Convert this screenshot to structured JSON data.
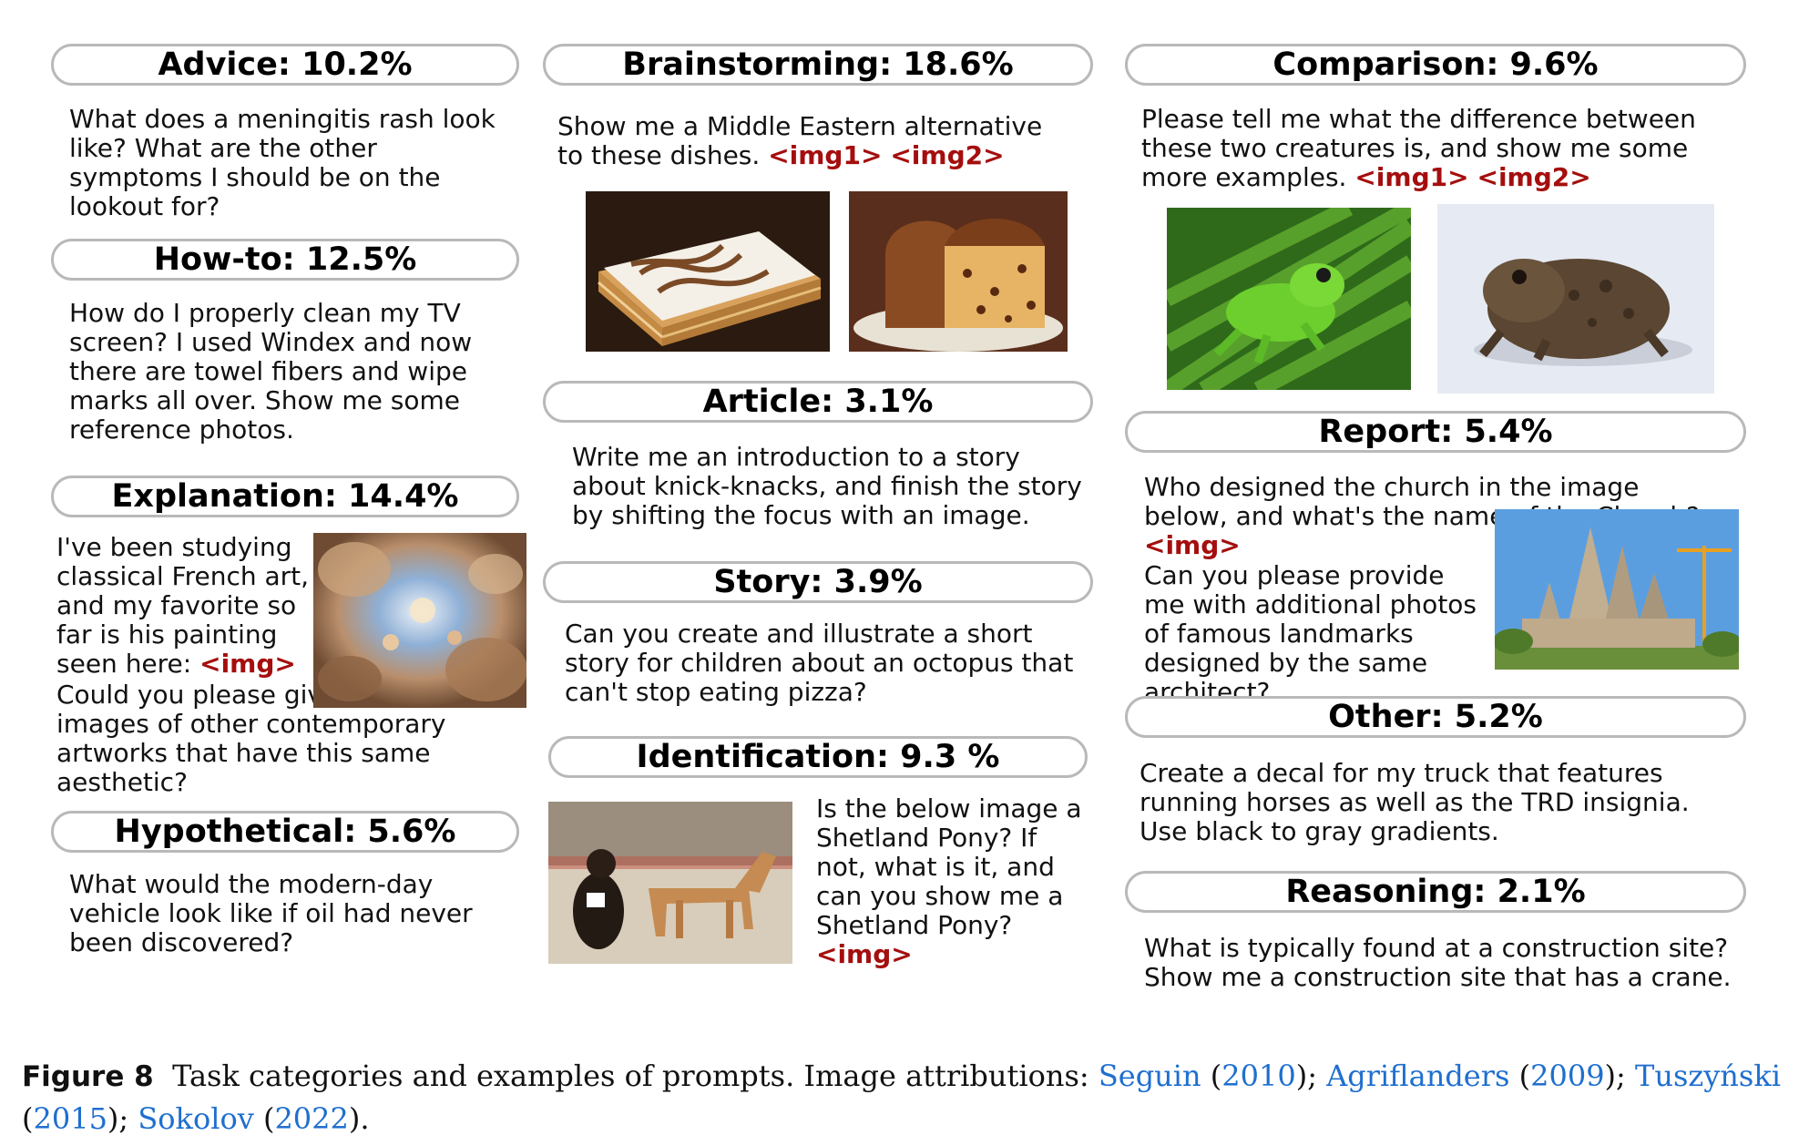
{
  "categories": {
    "advice": {
      "title": "Advice: 10.2%",
      "prompt": "What does a meningitis rash look like? What are the other symptoms I should be on the lookout for?"
    },
    "howto": {
      "title": "How-to: 12.5%",
      "prompt": "How do I properly clean my TV screen? I used Windex and now there are towel fibers and wipe marks all over. Show me some reference photos."
    },
    "explanation": {
      "title": "Explanation: 14.4%",
      "prompt_before": "I've been studying classical French art, and my favorite so far is his painting seen here:",
      "token": "<img>",
      "prompt_after": "Could you please give me a few images of other contemporary artworks that have this same aesthetic?"
    },
    "hypothetical": {
      "title": "Hypothetical: 5.6%",
      "prompt": "What would the modern-day vehicle look like if oil had never been discovered?"
    },
    "brainstorming": {
      "title": "Brainstorming: 18.6%",
      "prompt": "Show me a Middle Eastern alternative to these dishes.",
      "token1": "<img1>",
      "token2": "<img2>"
    },
    "article": {
      "title": "Article: 3.1%",
      "prompt": "Write me an introduction to a story about knick-knacks, and finish the story by shifting the focus with an image."
    },
    "story": {
      "title": "Story: 3.9%",
      "prompt": "Can you create and illustrate a short story for children about an octopus that can't stop eating pizza?"
    },
    "identification": {
      "title": "Identification: 9.3 %",
      "prompt": "Is the below image a Shetland Pony? If not, what is it, and can you show me a Shetland Pony?",
      "token": "<img>"
    },
    "comparison": {
      "title": "Comparison: 9.6%",
      "prompt": "Please tell me what the difference between these two creatures is, and show me some more examples.",
      "token1": "<img1>",
      "token2": "<img2>"
    },
    "report": {
      "title": "Report: 5.4%",
      "prompt_before": "Who designed the church in the image below, and what's the name of the Church?",
      "token": "<img>",
      "prompt_after": "Can you please provide me with additional photos of famous landmarks designed by the same architect?"
    },
    "other": {
      "title": "Other: 5.2%",
      "prompt": "Create a decal for my truck that features running horses as well as the TRD insignia. Use black to gray gradients."
    },
    "reasoning": {
      "title": "Reasoning: 2.1%",
      "prompt": "What is typically found at a construction site? Show me a construction site that has a crane."
    }
  },
  "caption": {
    "label": "Figure 8",
    "text": "Task categories and examples of prompts. Image attributions:",
    "cite1_author": "Seguin",
    "cite1_year": "2010",
    "cite2_author": "Agriflanders",
    "cite2_year": "2009",
    "cite3_author": "Tuszyński",
    "cite3_year": "2015",
    "cite4_author": "Sokolov",
    "cite4_year": "2022"
  },
  "colors": {
    "token": "#a50e0e",
    "citation": "#1f6fcf",
    "pill_border": "#b9b9b9"
  },
  "images": {
    "ceiling_painting": "painting-icon",
    "mille_feuille": "cake-icon",
    "panettone": "bread-icon",
    "horse": "horse-icon",
    "tree_frog": "frog-icon",
    "toad": "toad-icon",
    "church": "church-icon"
  }
}
